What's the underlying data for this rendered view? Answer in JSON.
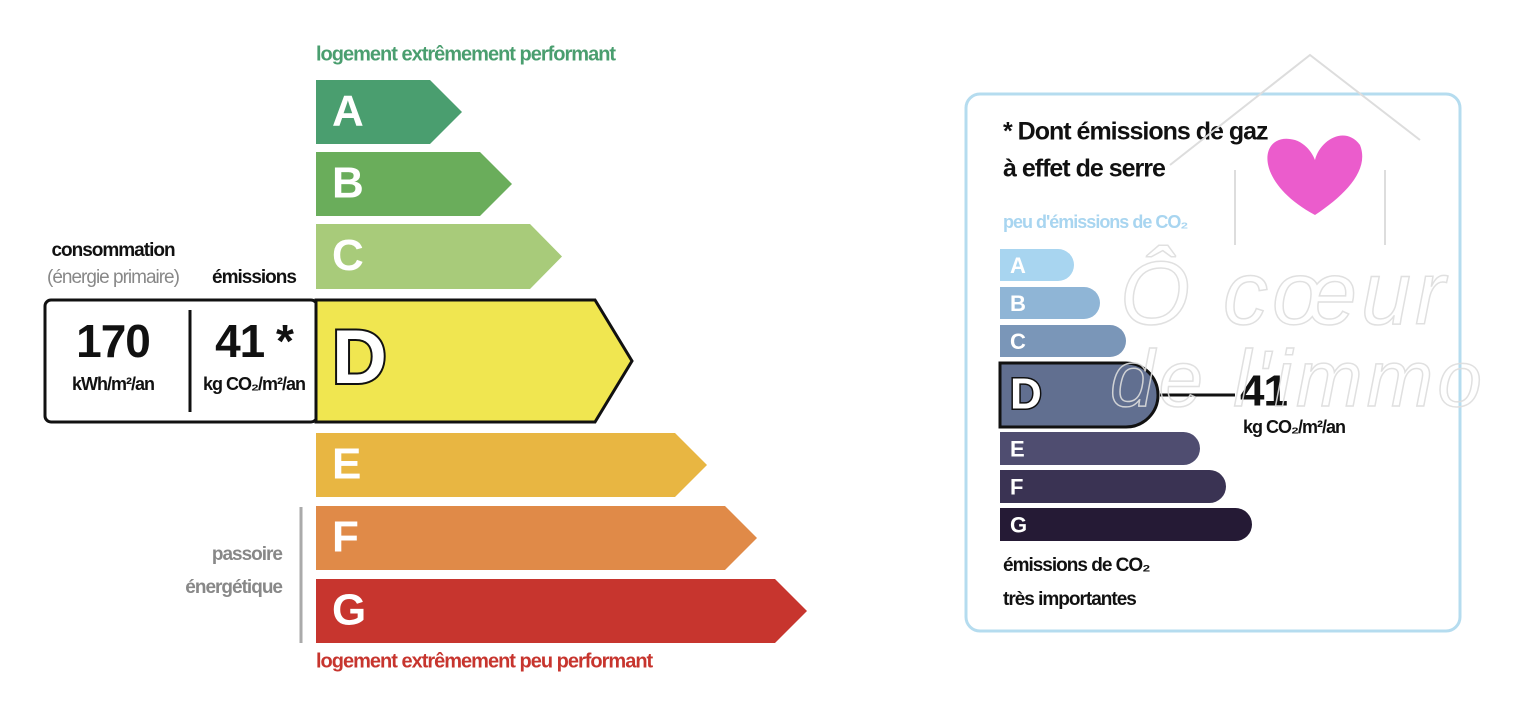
{
  "left": {
    "top_label": "logement extrêmement performant",
    "bottom_label": "logement extrêmement peu performant",
    "classes": [
      "A",
      "B",
      "C",
      "D",
      "E",
      "F",
      "G"
    ],
    "consumption_label": "consommation",
    "consumption_sub": "(énergie primaire)",
    "emissions_label": "émissions",
    "consumption_value": "170",
    "consumption_unit": "kWh/m²/an",
    "emissions_value": "41 *",
    "emissions_unit": "kg CO₂/m²/an",
    "side_label": [
      "passoire",
      "énergétique"
    ]
  },
  "right": {
    "title": [
      "* Dont émissions de gaz",
      "à effet de serre"
    ],
    "top_label": "peu d'émissions de CO₂",
    "classes": [
      "A",
      "B",
      "C",
      "D",
      "E",
      "F",
      "G"
    ],
    "value": "41",
    "unit": "kg CO₂/m²/an",
    "bottom_label": [
      "émissions de CO₂",
      "très importantes"
    ]
  },
  "watermark": [
    "Ô cœur",
    "de l'immo"
  ]
}
